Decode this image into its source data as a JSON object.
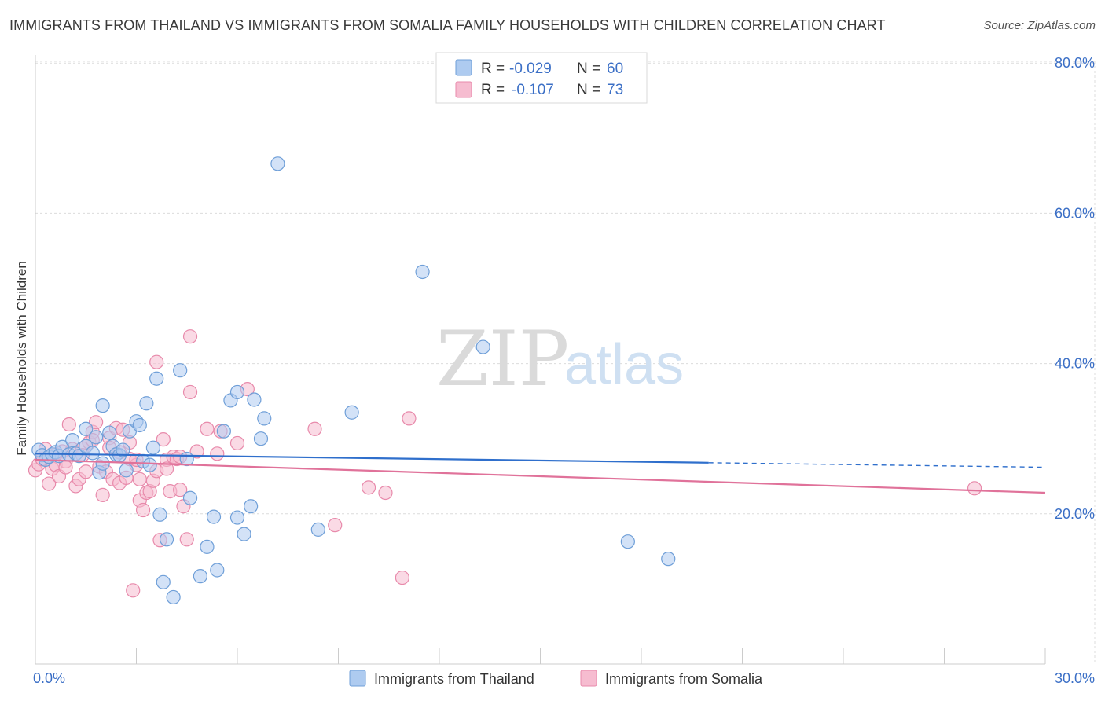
{
  "title": "IMMIGRANTS FROM THAILAND VS IMMIGRANTS FROM SOMALIA FAMILY HOUSEHOLDS WITH CHILDREN CORRELATION CHART",
  "source": "Source: ZipAtlas.com",
  "watermark": {
    "zip": "ZIP",
    "atlas": "atlas"
  },
  "legend": {
    "rows": [
      {
        "r_label": "R =",
        "r_value": "-0.029",
        "n_label": "N =",
        "n_value": "60"
      },
      {
        "r_label": "R =",
        "r_value": "-0.107",
        "n_label": "N =",
        "n_value": "73"
      }
    ]
  },
  "colors": {
    "thailand_fill": "#aecbf0",
    "thailand_stroke": "#6f9fd8",
    "thailand_line": "#2f6fcc",
    "somalia_fill": "#f6bcd0",
    "somalia_stroke": "#e88aab",
    "somalia_line": "#e0729a",
    "grid": "#dcdcdc",
    "tick_text": "#3b6fc6"
  },
  "chart_data": {
    "type": "scatter",
    "xlabel": "",
    "ylabel": "Family Households with Children",
    "xlim": [
      0,
      30
    ],
    "ylim": [
      0,
      85
    ],
    "x_tick_labels": [
      "0.0%",
      "30.0%"
    ],
    "y_ticks": [
      20,
      40,
      60,
      80
    ],
    "y_tick_labels": [
      "20.0%",
      "40.0%",
      "60.0%",
      "80.0%"
    ],
    "grid": true,
    "legend_position": "top-center",
    "series": [
      {
        "name": "Immigrants from Thailand",
        "r": -0.029,
        "n": 60,
        "trend": {
          "x0": 0,
          "y0": 28.0,
          "x1": 20,
          "y1": 26.8,
          "dash_to_x": 30,
          "dash_to_y": 26.2
        },
        "points": [
          [
            0.1,
            28.5
          ],
          [
            0.2,
            27.8
          ],
          [
            0.3,
            27.2
          ],
          [
            0.4,
            27.6
          ],
          [
            0.5,
            27.9
          ],
          [
            0.6,
            28.2
          ],
          [
            0.7,
            27.7
          ],
          [
            0.8,
            28.9
          ],
          [
            1.0,
            27.9
          ],
          [
            1.1,
            29.8
          ],
          [
            1.2,
            28.0
          ],
          [
            1.3,
            27.7
          ],
          [
            1.5,
            29.0
          ],
          [
            1.5,
            31.3
          ],
          [
            1.7,
            28.1
          ],
          [
            1.8,
            30.2
          ],
          [
            1.9,
            25.5
          ],
          [
            2.0,
            26.7
          ],
          [
            2.0,
            34.4
          ],
          [
            2.2,
            30.8
          ],
          [
            2.3,
            29.0
          ],
          [
            2.4,
            27.9
          ],
          [
            2.5,
            27.8
          ],
          [
            2.6,
            28.5
          ],
          [
            2.7,
            25.8
          ],
          [
            2.8,
            31.0
          ],
          [
            3.0,
            32.3
          ],
          [
            3.1,
            31.8
          ],
          [
            3.2,
            27.0
          ],
          [
            3.3,
            34.7
          ],
          [
            3.4,
            26.5
          ],
          [
            3.5,
            28.8
          ],
          [
            3.6,
            38.0
          ],
          [
            3.7,
            19.9
          ],
          [
            3.8,
            10.9
          ],
          [
            3.9,
            16.6
          ],
          [
            4.1,
            8.9
          ],
          [
            4.3,
            39.1
          ],
          [
            4.5,
            27.3
          ],
          [
            4.6,
            22.1
          ],
          [
            4.9,
            11.7
          ],
          [
            5.1,
            15.6
          ],
          [
            5.3,
            19.6
          ],
          [
            5.4,
            12.5
          ],
          [
            5.6,
            31.0
          ],
          [
            5.8,
            35.1
          ],
          [
            6.0,
            36.2
          ],
          [
            6.0,
            19.5
          ],
          [
            6.2,
            17.3
          ],
          [
            6.4,
            21.0
          ],
          [
            6.5,
            35.2
          ],
          [
            6.7,
            30.0
          ],
          [
            6.8,
            32.7
          ],
          [
            7.2,
            66.6
          ],
          [
            8.4,
            17.9
          ],
          [
            9.4,
            33.5
          ],
          [
            11.5,
            52.2
          ],
          [
            13.3,
            42.2
          ],
          [
            17.6,
            16.3
          ],
          [
            18.8,
            14.0
          ]
        ]
      },
      {
        "name": "Immigrants from Somalia",
        "r": -0.107,
        "n": 73,
        "trend": {
          "x0": 0,
          "y0": 27.2,
          "x1": 30,
          "y1": 22.8
        },
        "points": [
          [
            0.0,
            25.8
          ],
          [
            0.1,
            26.6
          ],
          [
            0.2,
            27.3
          ],
          [
            0.3,
            28.6
          ],
          [
            0.4,
            24.0
          ],
          [
            0.5,
            26.0
          ],
          [
            0.6,
            26.5
          ],
          [
            0.7,
            25.0
          ],
          [
            0.8,
            28.3
          ],
          [
            0.9,
            27.0
          ],
          [
            1.0,
            31.9
          ],
          [
            1.1,
            28.6
          ],
          [
            1.2,
            23.7
          ],
          [
            1.3,
            24.6
          ],
          [
            1.4,
            28.7
          ],
          [
            1.5,
            25.6
          ],
          [
            1.6,
            29.5
          ],
          [
            1.7,
            30.9
          ],
          [
            1.8,
            32.2
          ],
          [
            1.9,
            26.3
          ],
          [
            2.0,
            22.5
          ],
          [
            2.1,
            25.6
          ],
          [
            2.2,
            30.1
          ],
          [
            2.3,
            24.6
          ],
          [
            2.4,
            31.4
          ],
          [
            2.5,
            24.1
          ],
          [
            2.5,
            28.2
          ],
          [
            2.6,
            31.2
          ],
          [
            2.7,
            24.8
          ],
          [
            2.8,
            27.3
          ],
          [
            2.8,
            29.5
          ],
          [
            2.9,
            9.8
          ],
          [
            3.0,
            26.5
          ],
          [
            3.1,
            24.6
          ],
          [
            3.1,
            21.8
          ],
          [
            3.2,
            20.5
          ],
          [
            3.3,
            22.8
          ],
          [
            3.4,
            23.0
          ],
          [
            3.5,
            24.4
          ],
          [
            3.6,
            25.7
          ],
          [
            3.6,
            40.2
          ],
          [
            3.7,
            16.5
          ],
          [
            3.8,
            29.9
          ],
          [
            3.9,
            27.2
          ],
          [
            4.0,
            23.0
          ],
          [
            4.1,
            27.6
          ],
          [
            4.2,
            27.3
          ],
          [
            4.3,
            23.2
          ],
          [
            4.4,
            21.0
          ],
          [
            4.5,
            16.6
          ],
          [
            4.6,
            43.6
          ],
          [
            4.6,
            36.2
          ],
          [
            4.8,
            28.3
          ],
          [
            5.1,
            31.3
          ],
          [
            5.4,
            28.0
          ],
          [
            5.5,
            31.0
          ],
          [
            6.0,
            29.4
          ],
          [
            6.3,
            36.6
          ],
          [
            8.3,
            31.3
          ],
          [
            8.9,
            18.5
          ],
          [
            9.9,
            23.5
          ],
          [
            10.4,
            22.8
          ],
          [
            10.9,
            11.5
          ],
          [
            11.1,
            32.7
          ],
          [
            0.6,
            27.9
          ],
          [
            0.9,
            26.2
          ],
          [
            1.4,
            27.8
          ],
          [
            2.2,
            28.8
          ],
          [
            3.0,
            27.2
          ],
          [
            3.9,
            26.0
          ],
          [
            4.3,
            27.6
          ],
          [
            27.9,
            23.4
          ],
          [
            1.7,
            29.8
          ]
        ]
      }
    ]
  }
}
